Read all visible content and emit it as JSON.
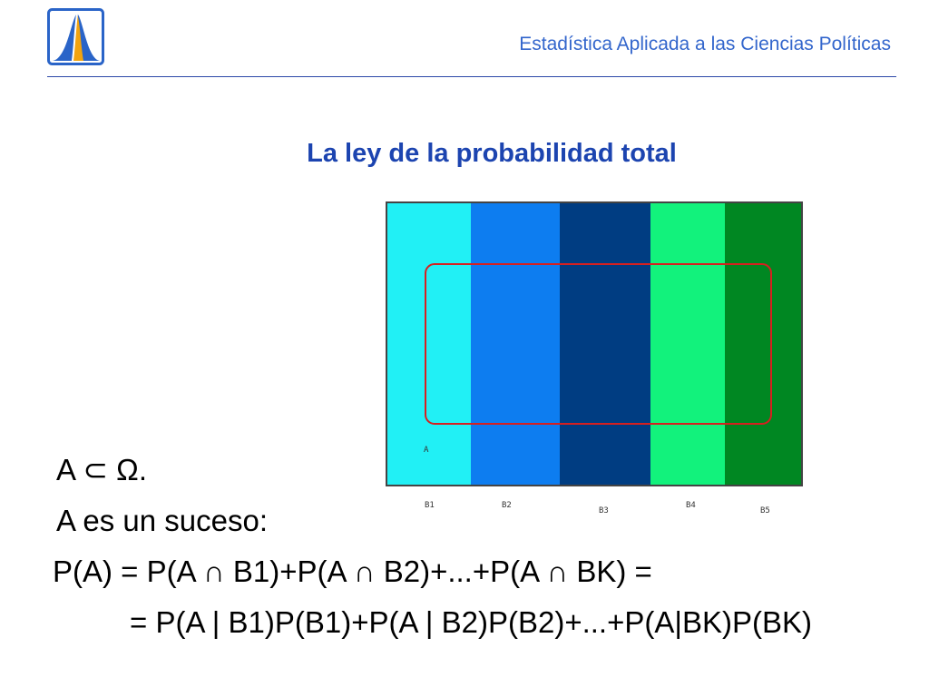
{
  "header": {
    "title": "Estadística Aplicada a las Ciencias Políticas",
    "logo_icon": "normal-curve-logo-icon"
  },
  "slide": {
    "title": "La ley de la probabilidad total"
  },
  "diagram": {
    "bands": [
      {
        "label": "B1",
        "color": "#21f0f5"
      },
      {
        "label": "B2",
        "color": "#0d7df0"
      },
      {
        "label": "B3",
        "color": "#003d82"
      },
      {
        "label": "B4",
        "color": "#12f27c"
      },
      {
        "label": "B5",
        "color": "#008722"
      }
    ],
    "event_label": "A",
    "event_outline_color": "#d62020"
  },
  "formulas": {
    "line1": "A ⊂ Ω.",
    "line2": "A es un suceso:",
    "line3": "P(A) = P(A ∩ B1)+P(A ∩ B2)+...+P(A ∩ BK) =",
    "line4": "= P(A | B1)P(B1)+P(A | B2)P(B2)+...+P(A|BK)P(BK)"
  }
}
